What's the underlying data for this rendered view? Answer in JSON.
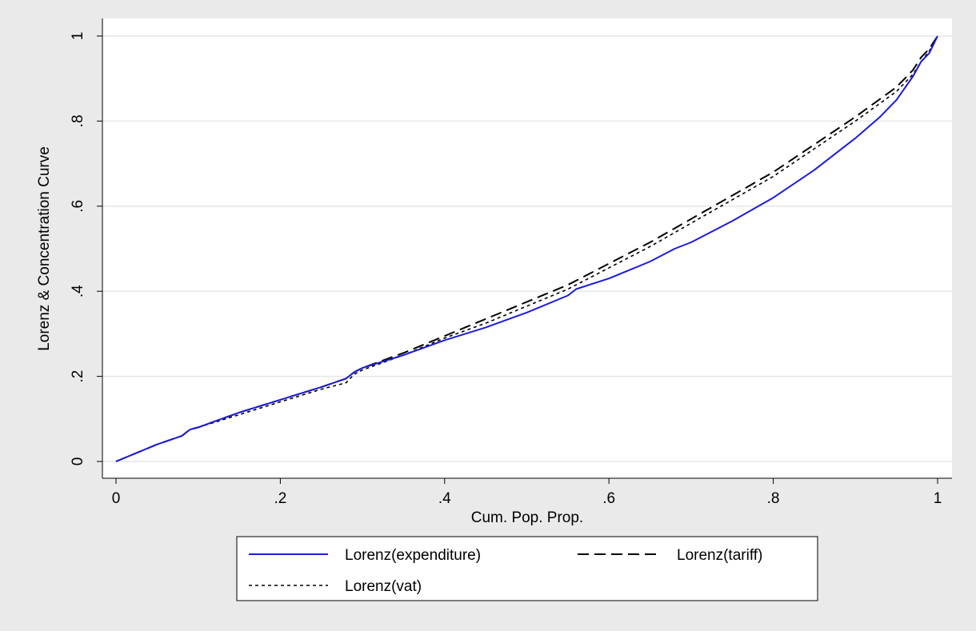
{
  "colors": {
    "outer_background": "#eaeaea",
    "plot_background": "#ffffff",
    "gridline": "#e6e6e6",
    "expenditure": "#1c1cd8",
    "tariff": "#000000",
    "vat": "#000000"
  },
  "chart_data": {
    "type": "line",
    "title": "",
    "xlabel": "Cum. Pop. Prop.",
    "ylabel": "Lorenz & Concentration Curve",
    "xlim": [
      0,
      1
    ],
    "ylim": [
      0,
      1
    ],
    "xticks": [
      "0",
      ".2",
      ".4",
      ".6",
      ".8",
      "1"
    ],
    "yticks": [
      "0",
      ".2",
      ".4",
      ".6",
      ".8",
      "1"
    ],
    "grid": "horizontal",
    "legend_position": "bottom",
    "series": [
      {
        "name": "Lorenz(expenditure)",
        "style": "solid",
        "color": "#1c1cd8",
        "x": [
          0,
          0.05,
          0.08,
          0.09,
          0.1,
          0.15,
          0.2,
          0.25,
          0.28,
          0.29,
          0.3,
          0.35,
          0.4,
          0.45,
          0.5,
          0.55,
          0.56,
          0.6,
          0.65,
          0.68,
          0.7,
          0.75,
          0.8,
          0.85,
          0.9,
          0.93,
          0.95,
          0.97,
          0.98,
          0.99,
          1
        ],
        "y": [
          0,
          0.04,
          0.06,
          0.075,
          0.08,
          0.115,
          0.145,
          0.175,
          0.195,
          0.21,
          0.22,
          0.25,
          0.285,
          0.315,
          0.35,
          0.39,
          0.405,
          0.43,
          0.47,
          0.5,
          0.515,
          0.565,
          0.62,
          0.685,
          0.76,
          0.81,
          0.85,
          0.905,
          0.94,
          0.96,
          1
        ]
      },
      {
        "name": "Lorenz(tariff)",
        "style": "dash",
        "color": "#000000",
        "x": [
          0,
          0.05,
          0.08,
          0.09,
          0.1,
          0.15,
          0.2,
          0.25,
          0.28,
          0.29,
          0.3,
          0.35,
          0.4,
          0.45,
          0.5,
          0.55,
          0.6,
          0.65,
          0.7,
          0.75,
          0.8,
          0.85,
          0.9,
          0.95,
          0.97,
          0.98,
          0.99,
          1
        ],
        "y": [
          0,
          0.04,
          0.06,
          0.075,
          0.08,
          0.115,
          0.145,
          0.175,
          0.195,
          0.21,
          0.22,
          0.255,
          0.295,
          0.335,
          0.375,
          0.415,
          0.465,
          0.515,
          0.57,
          0.625,
          0.68,
          0.745,
          0.81,
          0.88,
          0.92,
          0.95,
          0.97,
          1
        ]
      },
      {
        "name": "Lorenz(vat)",
        "style": "dot",
        "color": "#000000",
        "x": [
          0,
          0.05,
          0.08,
          0.09,
          0.1,
          0.15,
          0.2,
          0.25,
          0.28,
          0.29,
          0.3,
          0.35,
          0.4,
          0.45,
          0.5,
          0.55,
          0.6,
          0.65,
          0.7,
          0.75,
          0.8,
          0.85,
          0.9,
          0.95,
          0.97,
          0.98,
          0.99,
          1
        ],
        "y": [
          0,
          0.04,
          0.06,
          0.075,
          0.08,
          0.11,
          0.14,
          0.17,
          0.185,
          0.205,
          0.215,
          0.25,
          0.29,
          0.325,
          0.365,
          0.405,
          0.455,
          0.505,
          0.56,
          0.615,
          0.67,
          0.735,
          0.8,
          0.87,
          0.91,
          0.94,
          0.965,
          1
        ]
      }
    ]
  }
}
